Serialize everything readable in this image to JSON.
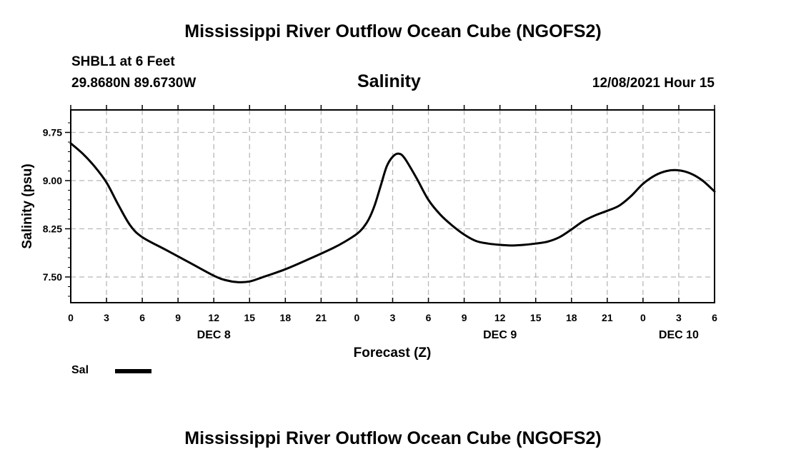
{
  "header": {
    "title_top": "Mississippi River Outflow Ocean Cube (NGOFS2)",
    "station": "SHBL1 at 6 Feet",
    "coords": "29.8680N  89.6730W",
    "chart_title": "Salinity",
    "datetime": "12/08/2021 Hour 15",
    "title_bottom": "Mississippi River Outflow Ocean Cube (NGOFS2)"
  },
  "legend": {
    "label": "Sal",
    "color": "#000000"
  },
  "chart_data": {
    "type": "line",
    "title": "Salinity",
    "xlabel": "Forecast (Z)",
    "ylabel": "Salinity (psu)",
    "xlim": [
      0,
      54
    ],
    "ylim": [
      7.1,
      10.1
    ],
    "yticks": [
      7.5,
      8.25,
      9.0,
      9.75
    ],
    "ytick_labels": [
      "7.50",
      "8.25",
      "9.00",
      "9.75"
    ],
    "xticks": [
      0,
      3,
      6,
      9,
      12,
      15,
      18,
      21,
      24,
      27,
      30,
      33,
      36,
      39,
      42,
      45,
      48,
      51,
      54
    ],
    "xtick_labels": [
      "0",
      "3",
      "6",
      "9",
      "12",
      "15",
      "18",
      "21",
      "0",
      "3",
      "6",
      "9",
      "12",
      "15",
      "18",
      "21",
      "0",
      "3",
      "6"
    ],
    "day_labels": [
      {
        "x": 12,
        "label": "DEC 8"
      },
      {
        "x": 36,
        "label": "DEC 9"
      },
      {
        "x": 51,
        "label": "DEC 10"
      }
    ],
    "grid": true,
    "series": [
      {
        "name": "Sal",
        "x": [
          0,
          1,
          2,
          3,
          4,
          5,
          6,
          8,
          10,
          12,
          13,
          14,
          15,
          16,
          18,
          20,
          22,
          23,
          24,
          24.5,
          25,
          25.5,
          26,
          26.5,
          27,
          27.5,
          28,
          29,
          30,
          31,
          32,
          33,
          34,
          35,
          36,
          37,
          38,
          39,
          40,
          41,
          42,
          43,
          44,
          45,
          46,
          47,
          48,
          49,
          50,
          51,
          52,
          53,
          54
        ],
        "y": [
          9.58,
          9.42,
          9.22,
          8.97,
          8.62,
          8.3,
          8.12,
          7.92,
          7.72,
          7.52,
          7.45,
          7.42,
          7.43,
          7.49,
          7.62,
          7.78,
          7.95,
          8.05,
          8.17,
          8.26,
          8.4,
          8.62,
          8.92,
          9.22,
          9.37,
          9.42,
          9.35,
          9.04,
          8.7,
          8.47,
          8.3,
          8.16,
          8.06,
          8.02,
          8.0,
          7.99,
          8.0,
          8.02,
          8.05,
          8.12,
          8.24,
          8.37,
          8.46,
          8.53,
          8.61,
          8.76,
          8.95,
          9.08,
          9.15,
          9.16,
          9.11,
          9.0,
          8.83
        ]
      }
    ]
  }
}
